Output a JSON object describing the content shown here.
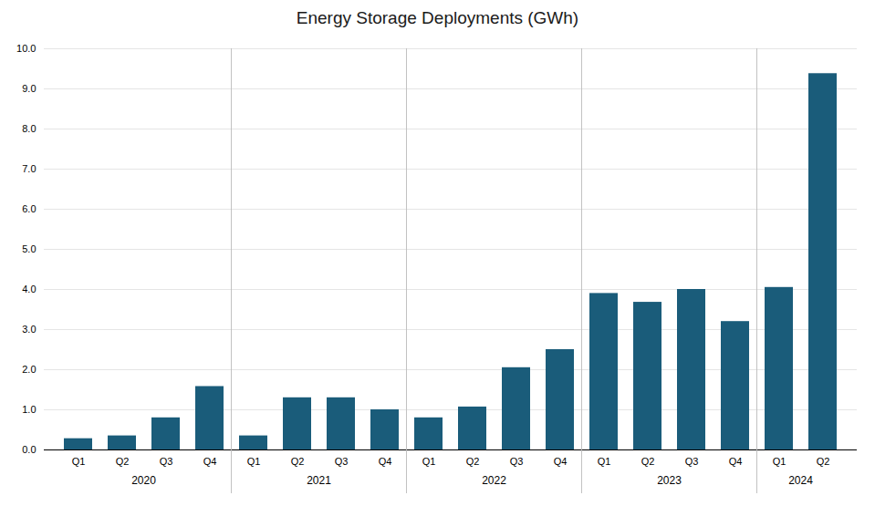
{
  "chart_data": {
    "type": "bar",
    "title": "Energy Storage Deployments (GWh)",
    "categories": [
      "Q1",
      "Q2",
      "Q3",
      "Q4",
      "Q1",
      "Q2",
      "Q3",
      "Q4",
      "Q1",
      "Q2",
      "Q3",
      "Q4",
      "Q1",
      "Q2",
      "Q3",
      "Q4",
      "Q1",
      "Q2"
    ],
    "category_groups": [
      "2020",
      "2020",
      "2020",
      "2020",
      "2021",
      "2021",
      "2021",
      "2021",
      "2022",
      "2022",
      "2022",
      "2022",
      "2023",
      "2023",
      "2023",
      "2023",
      "2024",
      "2024"
    ],
    "values": [
      0.28,
      0.35,
      0.8,
      1.58,
      0.35,
      1.3,
      1.3,
      1.0,
      0.8,
      1.07,
      2.05,
      2.5,
      3.9,
      3.68,
      4.0,
      3.2,
      4.05,
      9.38
    ],
    "color": "#1a5c7a",
    "ylim": [
      0,
      10.0
    ],
    "yticks": [
      {
        "value": 0.0,
        "label": "0.0"
      },
      {
        "value": 1.0,
        "label": "1.0"
      },
      {
        "value": 2.0,
        "label": "2.0"
      },
      {
        "value": 3.0,
        "label": "3.0"
      },
      {
        "value": 4.0,
        "label": "4.0"
      },
      {
        "value": 5.0,
        "label": "5.0"
      },
      {
        "value": 6.0,
        "label": "6.0"
      },
      {
        "value": 7.0,
        "label": "7.0"
      },
      {
        "value": 8.0,
        "label": "8.0"
      },
      {
        "value": 9.0,
        "label": "9.0"
      },
      {
        "value": 10.0,
        "label": "10.0"
      }
    ],
    "grid": true
  }
}
